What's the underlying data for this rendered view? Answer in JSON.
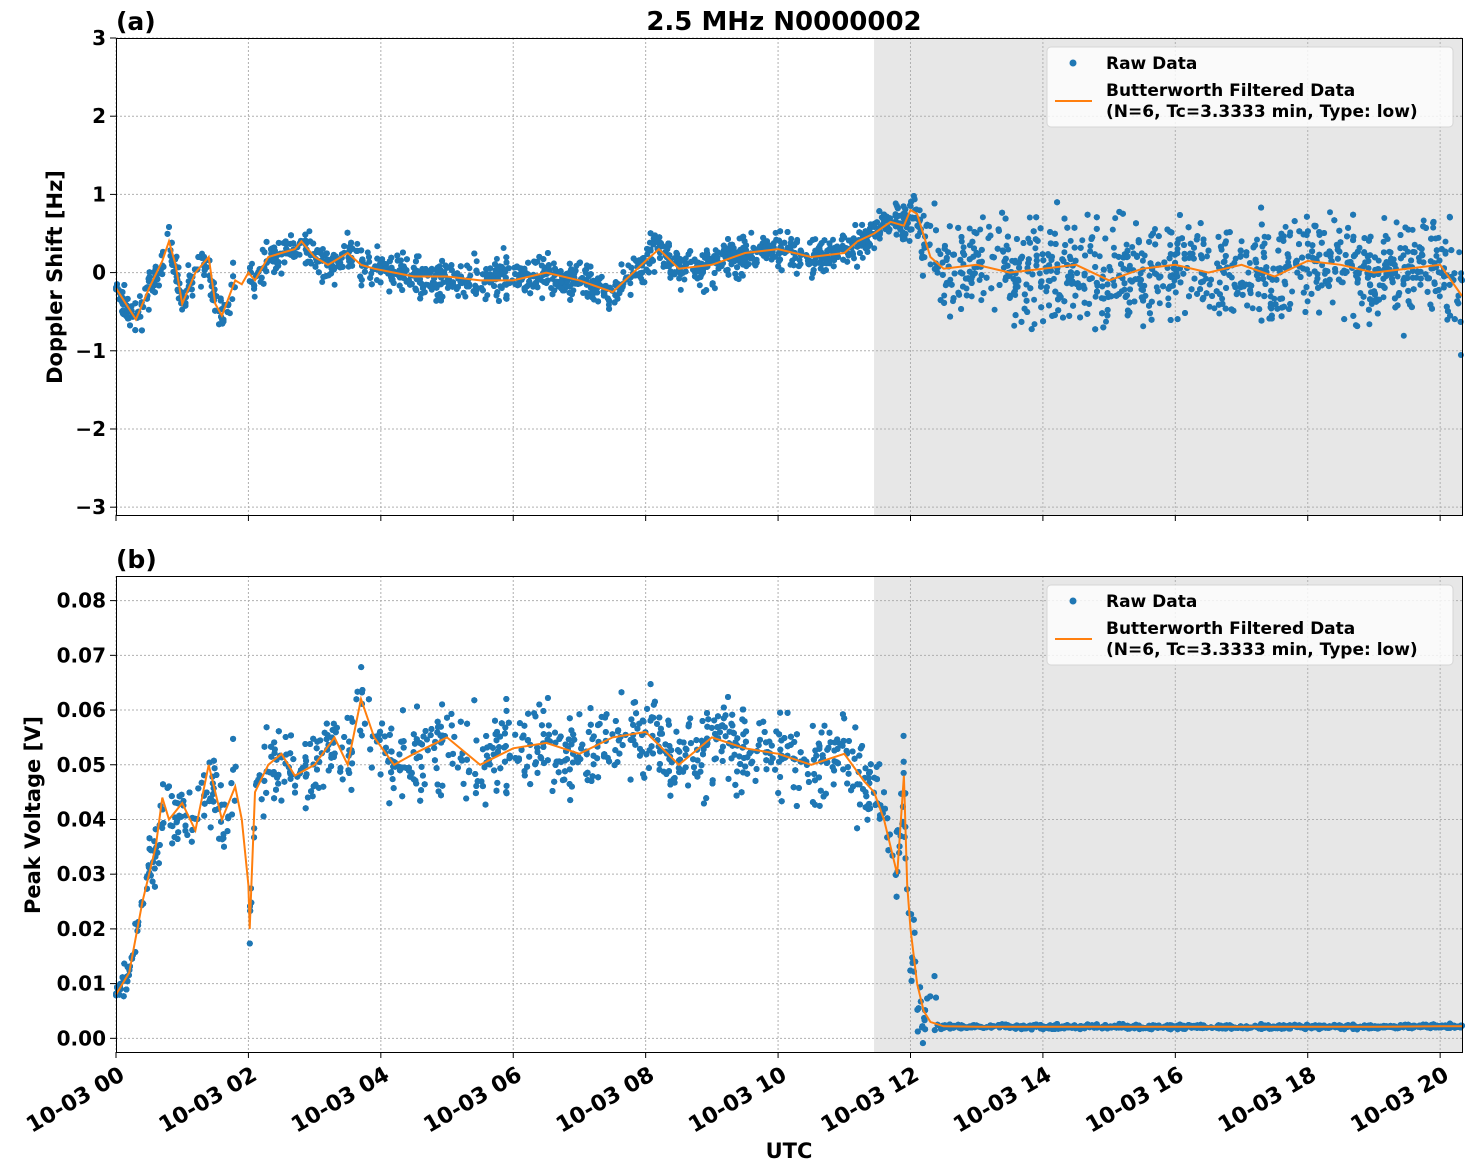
{
  "figure": {
    "title": "2.5 MHz N0000002",
    "xlabel": "UTC",
    "x_ticks": [
      "10-03 00",
      "10-03 02",
      "10-03 04",
      "10-03 06",
      "10-03 08",
      "10-03 10",
      "10-03 12",
      "10-03 14",
      "10-03 16",
      "10-03 18",
      "10-03 20"
    ],
    "colors": {
      "raw": "#1f77b4",
      "filtered": "#ff7f0e",
      "shade": "#e7e7e7",
      "grid": "#b0b0b0"
    },
    "legend": {
      "raw": "Raw Data",
      "filtered_line1": "Butterworth Filtered Data",
      "filtered_line2": "(N=6, Tc=3.3333 min, Type: low)"
    }
  },
  "chart_data": [
    {
      "type": "scatter",
      "panel_label": "(a)",
      "ylabel": "Doppler Shift [Hz]",
      "xlim_hours": [
        0,
        20.33
      ],
      "ylim": [
        -3.1,
        3.0
      ],
      "y_ticks": [
        "3",
        "2",
        "1",
        "0",
        "−1",
        "−2",
        "−3"
      ],
      "y_tick_values": [
        3,
        2,
        1,
        0,
        -1,
        -2,
        -3
      ],
      "shaded_region_hours": [
        11.45,
        20.33
      ],
      "legend_position": "top-right",
      "series": [
        {
          "name": "Butterworth Filtered Data (N=6, Tc=3.3333 min, Type: low)",
          "style": "line",
          "x_hours": [
            0,
            0.3,
            0.5,
            0.7,
            0.8,
            0.9,
            1.0,
            1.2,
            1.4,
            1.5,
            1.6,
            1.8,
            1.9,
            2.0,
            2.1,
            2.3,
            2.5,
            2.7,
            2.8,
            3.0,
            3.2,
            3.5,
            3.7,
            3.9,
            4.2,
            4.5,
            5.0,
            5.5,
            6.0,
            6.5,
            7.0,
            7.5,
            8.0,
            8.2,
            8.5,
            9.0,
            9.5,
            10.0,
            10.5,
            11.0,
            11.2,
            11.45,
            11.7,
            11.9,
            12.0,
            12.1,
            12.3,
            12.5,
            13.0,
            13.5,
            14.0,
            14.5,
            15.0,
            15.5,
            16.0,
            16.5,
            17.0,
            17.5,
            18.0,
            18.5,
            19.0,
            19.5,
            20.0,
            20.33
          ],
          "values": [
            -0.2,
            -0.6,
            -0.2,
            0.15,
            0.4,
            0.1,
            -0.4,
            0.0,
            0.2,
            -0.4,
            -0.55,
            -0.1,
            -0.15,
            0.0,
            -0.1,
            0.2,
            0.25,
            0.3,
            0.4,
            0.2,
            0.1,
            0.25,
            0.1,
            0.05,
            0.0,
            -0.05,
            -0.05,
            -0.1,
            -0.1,
            0.0,
            -0.1,
            -0.25,
            0.15,
            0.3,
            0.05,
            0.1,
            0.25,
            0.3,
            0.2,
            0.25,
            0.4,
            0.5,
            0.65,
            0.6,
            0.8,
            0.75,
            0.2,
            0.05,
            0.1,
            0.0,
            0.05,
            0.1,
            -0.1,
            0.05,
            0.1,
            0.0,
            0.1,
            -0.05,
            0.15,
            0.1,
            0.0,
            0.05,
            0.1,
            -0.3
          ]
        },
        {
          "name": "Raw Data",
          "style": "points",
          "x_hours_range": [
            0,
            20.33
          ],
          "note_spread_hz": "about ±0.4 before 12:15 UTC, about ±1.1 after"
        }
      ]
    },
    {
      "type": "scatter",
      "panel_label": "(b)",
      "ylabel": "Peak Voltage [V]",
      "xlim_hours": [
        0,
        20.33
      ],
      "ylim": [
        -0.0025,
        0.0845
      ],
      "y_ticks": [
        "0.08",
        "0.07",
        "0.06",
        "0.05",
        "0.04",
        "0.03",
        "0.02",
        "0.01",
        "0.00"
      ],
      "y_tick_values": [
        0.08,
        0.07,
        0.06,
        0.05,
        0.04,
        0.03,
        0.02,
        0.01,
        0.0
      ],
      "shaded_region_hours": [
        11.45,
        20.33
      ],
      "legend_position": "top-right",
      "series": [
        {
          "name": "Butterworth Filtered Data (N=6, Tc=3.3333 min, Type: low)",
          "style": "line",
          "x_hours": [
            0,
            0.2,
            0.4,
            0.6,
            0.7,
            0.8,
            1.0,
            1.2,
            1.4,
            1.5,
            1.6,
            1.8,
            1.9,
            2.0,
            2.02,
            2.1,
            2.3,
            2.5,
            2.7,
            3.0,
            3.3,
            3.5,
            3.7,
            3.9,
            4.2,
            4.5,
            5.0,
            5.5,
            6.0,
            6.5,
            7.0,
            7.5,
            8.0,
            8.5,
            9.0,
            9.5,
            10.0,
            10.5,
            11.0,
            11.3,
            11.45,
            11.6,
            11.8,
            11.9,
            11.95,
            12.0,
            12.1,
            12.2,
            12.3,
            12.5,
            13.0,
            14.0,
            15.0,
            16.0,
            17.0,
            18.0,
            19.0,
            20.0,
            20.33
          ],
          "values": [
            0.008,
            0.012,
            0.025,
            0.035,
            0.044,
            0.04,
            0.043,
            0.038,
            0.05,
            0.045,
            0.04,
            0.046,
            0.04,
            0.028,
            0.02,
            0.045,
            0.05,
            0.052,
            0.048,
            0.05,
            0.055,
            0.05,
            0.062,
            0.055,
            0.05,
            0.052,
            0.055,
            0.05,
            0.053,
            0.054,
            0.052,
            0.055,
            0.056,
            0.05,
            0.055,
            0.053,
            0.052,
            0.05,
            0.052,
            0.047,
            0.045,
            0.04,
            0.03,
            0.048,
            0.028,
            0.02,
            0.01,
            0.005,
            0.003,
            0.0022,
            0.0021,
            0.0021,
            0.0021,
            0.0021,
            0.0021,
            0.0021,
            0.0021,
            0.0022,
            0.0022
          ]
        },
        {
          "name": "Raw Data",
          "style": "points",
          "x_hours_range": [
            0,
            20.33
          ],
          "note_spread_v": "about ±0.01 around the filtered curve before 12:00 UTC, near 0.002 after 12:30 UTC"
        }
      ]
    }
  ]
}
